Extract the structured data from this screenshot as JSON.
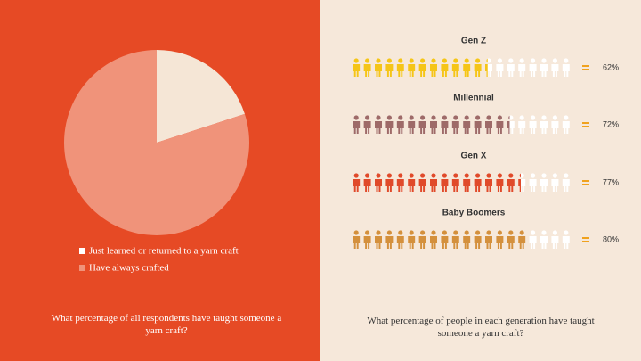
{
  "chart_data": [
    {
      "type": "pie",
      "categories": [
        "Just learned or returned to a yarn craft",
        "Have always crafted"
      ],
      "values": [
        20,
        80
      ],
      "colors": [
        "#f5e6d6",
        "#f0937a"
      ],
      "caption": "What percentage of all respondents have taught someone a yarn craft?"
    },
    {
      "type": "pictograph",
      "categories": [
        "Gen Z",
        "Millennial",
        "Gen X",
        "Baby Boomers"
      ],
      "values": [
        62,
        72,
        77,
        80
      ],
      "value_labels": [
        "62%",
        "72%",
        "77%",
        "80%"
      ],
      "colors": [
        "#f5c518",
        "#9e6a68",
        "#e04a2a",
        "#d4903c"
      ],
      "caption": "What percentage of people in each generation have taught someone a yarn craft?"
    }
  ]
}
